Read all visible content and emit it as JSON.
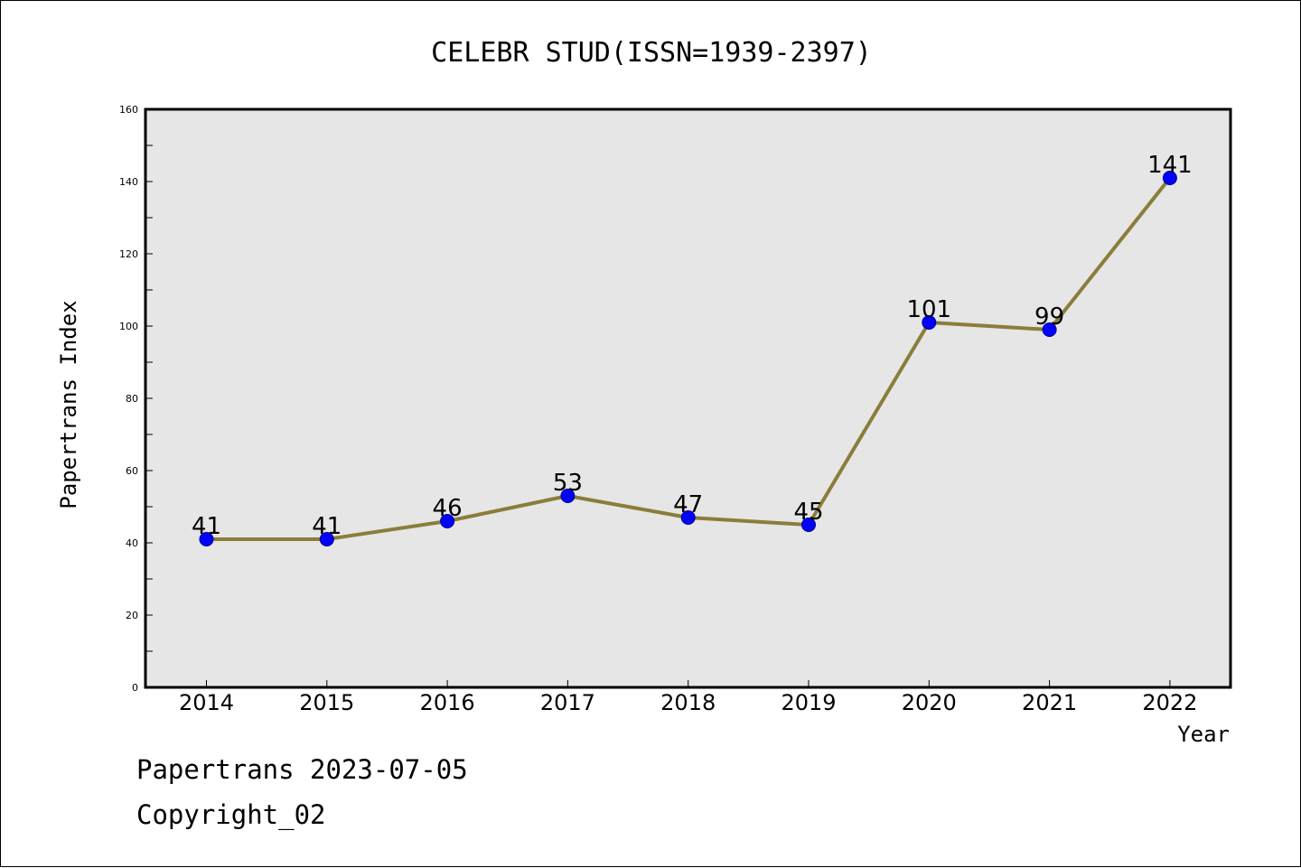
{
  "chart_data": {
    "type": "line",
    "title": "CELEBR STUD(ISSN=1939-2397)",
    "xlabel": "Year",
    "ylabel": "Papertrans Index",
    "categories": [
      "2014",
      "2015",
      "2016",
      "2017",
      "2018",
      "2019",
      "2020",
      "2021",
      "2022"
    ],
    "series": [
      {
        "values": [
          41,
          41,
          46,
          53,
          47,
          45,
          101,
          99,
          141
        ]
      }
    ],
    "data_labels": [
      "41",
      "41",
      "46",
      "53",
      "47",
      "45",
      "101",
      "99",
      "141"
    ],
    "ylim": [
      0,
      160
    ],
    "y_ticks": [
      "0",
      "20",
      "40",
      "60",
      "80",
      "100",
      "120",
      "140",
      "160"
    ],
    "grid": false,
    "line_color": "#8B7D3A",
    "marker_color": "#0000FF",
    "plot_background": "#E6E6E6"
  },
  "footer": {
    "line1": "Papertrans 2023-07-05",
    "line2": "Copyright_02"
  }
}
